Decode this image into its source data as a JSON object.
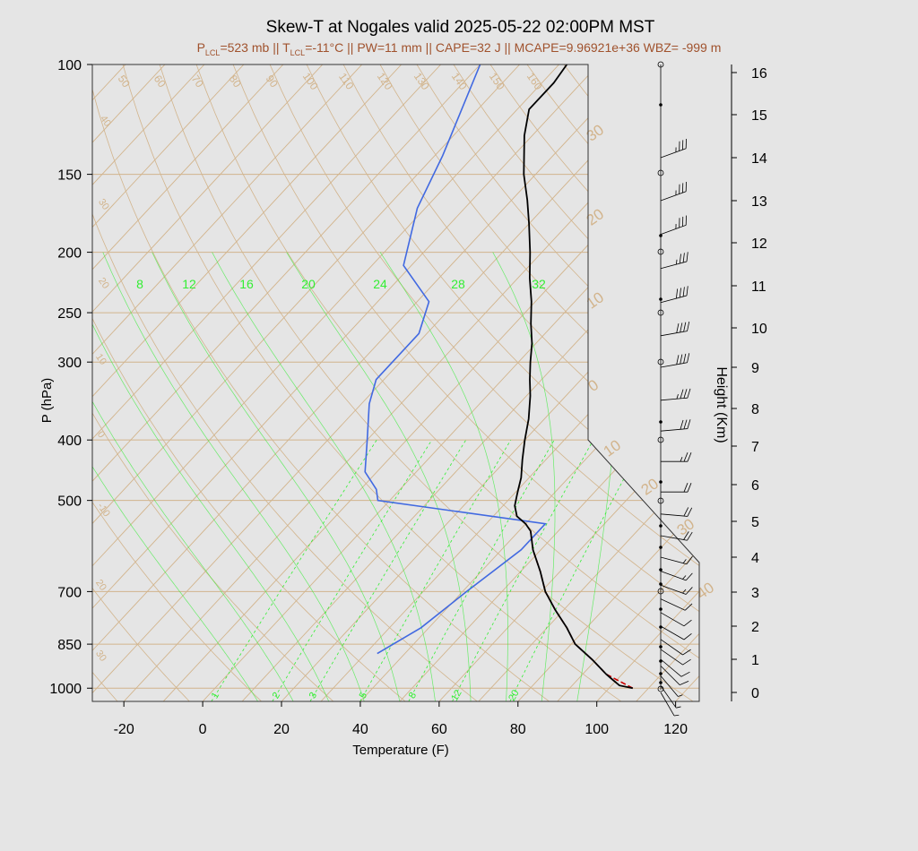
{
  "title": "Skew-T at Nogales valid 2025-05-22 02:00PM MST",
  "subtitle": "P_LCL=523 mb || T_LCL=-11°C || PW=11 mm || CAPE=32 J || MCAPE=9.96921e+36 WBZ= -999 m",
  "subtitle_parts": {
    "p_lcl": "=523 mb || ",
    "t_lcl": "=-11°C || PW=11 mm || CAPE=32 J || MCAPE=9.96921e+36 WBZ= -999 m",
    "p_letter": "P",
    "t_letter": "T",
    "sub": "LCL"
  },
  "colors": {
    "title": "#000000",
    "subtitle": "#a0522d",
    "isotherm": "#d2b48c",
    "isobar": "#d2b48c",
    "adiabat": "#d2b48c",
    "mixing_ratio": "#33ee33",
    "dewpoint": "#4169e1",
    "temperature": "#000000",
    "parcel": "#cc0000",
    "background": "#e5e5e5"
  },
  "chart_data": {
    "type": "skew-t",
    "xlabel": "Temperature (F)",
    "ylabel": "P (hPa)",
    "y2label": "Height (Km)",
    "x_ticks": [
      "-20",
      "0",
      "20",
      "40",
      "60",
      "80",
      "100",
      "120"
    ],
    "x_tick_values": [
      -20,
      0,
      20,
      40,
      60,
      80,
      100,
      120
    ],
    "xlim": [
      -28,
      126
    ],
    "ylim": [
      1050,
      100
    ],
    "y_log_scale": true,
    "y_ticks": [
      "100",
      "150",
      "200",
      "250",
      "300",
      "400",
      "500",
      "700",
      "850",
      "1000"
    ],
    "y_tick_values": [
      100,
      150,
      200,
      250,
      300,
      400,
      500,
      700,
      850,
      1000
    ],
    "height_ticks": [
      "0",
      "1",
      "2",
      "3",
      "4",
      "5",
      "6",
      "7",
      "8",
      "9",
      "10",
      "11",
      "12",
      "13",
      "14",
      "15",
      "16"
    ],
    "height_tick_pressures": [
      1000,
      900,
      795,
      702,
      616,
      540,
      472,
      410,
      356,
      307,
      264,
      226,
      193,
      165,
      140,
      120,
      102
    ],
    "isotherm_labels_top": [
      "50",
      "60",
      "70",
      "80",
      "90",
      "100",
      "110",
      "120",
      "130",
      "140",
      "150",
      "160"
    ],
    "isotherm_labels_right": [
      "30",
      "20",
      "10",
      "0",
      "10",
      "20",
      "30",
      "40"
    ],
    "adiabat_labels_left": [
      "40",
      "30",
      "20",
      "10",
      "0",
      "-10",
      "20",
      "30"
    ],
    "mixing_ratio_top_labels": [
      "8",
      "12",
      "16",
      "20",
      "24",
      "28",
      "32"
    ],
    "mixing_ratio_bottom_labels": [
      "1",
      "2",
      "3",
      "5",
      "8",
      "12",
      "20"
    ],
    "temperature_profile": {
      "name": "",
      "points": [
        [
          1000,
          106
        ],
        [
          990,
          102
        ],
        [
          970,
          99
        ],
        [
          950,
          96
        ],
        [
          900,
          89
        ],
        [
          850,
          81
        ],
        [
          800,
          75
        ],
        [
          750,
          68
        ],
        [
          700,
          61
        ],
        [
          650,
          55
        ],
        [
          600,
          48
        ],
        [
          560,
          43
        ],
        [
          545,
          40
        ],
        [
          530,
          36
        ],
        [
          510,
          33
        ],
        [
          490,
          31
        ],
        [
          480,
          30
        ],
        [
          460,
          28
        ],
        [
          430,
          24
        ],
        [
          400,
          20
        ],
        [
          370,
          16
        ],
        [
          340,
          11
        ],
        [
          320,
          7
        ],
        [
          300,
          3
        ],
        [
          280,
          -1
        ],
        [
          260,
          -6
        ],
        [
          240,
          -11
        ],
        [
          220,
          -17
        ],
        [
          200,
          -23
        ],
        [
          180,
          -30
        ],
        [
          165,
          -36
        ],
        [
          150,
          -43
        ],
        [
          130,
          -52
        ],
        [
          118,
          -57
        ],
        [
          107,
          -57
        ],
        [
          100,
          -58
        ]
      ]
    },
    "dewpoint_profile": {
      "name": "",
      "points": [
        [
          880,
          33
        ],
        [
          800,
          38
        ],
        [
          700,
          41
        ],
        [
          600,
          45
        ],
        [
          545,
          45
        ],
        [
          500,
          -3
        ],
        [
          480,
          -6
        ],
        [
          450,
          -13
        ],
        [
          400,
          -20
        ],
        [
          350,
          -28
        ],
        [
          320,
          -32
        ],
        [
          270,
          -32
        ],
        [
          240,
          -37
        ],
        [
          210,
          -52
        ],
        [
          170,
          -62
        ],
        [
          140,
          -68
        ],
        [
          100,
          -80
        ]
      ]
    },
    "parcel_profile": {
      "name": "",
      "points": [
        [
          1000,
          106
        ],
        [
          950,
          96
        ],
        [
          900,
          89
        ],
        [
          850,
          81
        ],
        [
          800,
          75
        ],
        [
          750,
          68
        ],
        [
          700,
          61
        ],
        [
          650,
          55
        ],
        [
          600,
          48
        ],
        [
          560,
          43
        ]
      ]
    },
    "wind_barbs": {
      "heights_km": [
        0.0,
        0.2,
        0.5,
        0.8,
        1.0,
        1.3,
        1.6,
        2.0,
        2.4,
        2.8,
        3.2,
        3.6,
        4.0,
        4.6,
        5.2,
        5.8,
        6.6,
        7.4,
        8.2,
        9.0,
        9.8,
        10.6,
        11.4,
        12.2,
        13.0,
        14.0
      ],
      "directions_deg": [
        210,
        215,
        220,
        225,
        230,
        235,
        235,
        240,
        240,
        245,
        250,
        250,
        255,
        260,
        265,
        270,
        270,
        275,
        275,
        280,
        280,
        285,
        285,
        290,
        290,
        290
      ],
      "speeds_kt": [
        5,
        5,
        5,
        10,
        10,
        10,
        10,
        10,
        10,
        10,
        15,
        15,
        15,
        20,
        20,
        20,
        25,
        30,
        35,
        40,
        40,
        40,
        35,
        35,
        35,
        35
      ]
    }
  }
}
